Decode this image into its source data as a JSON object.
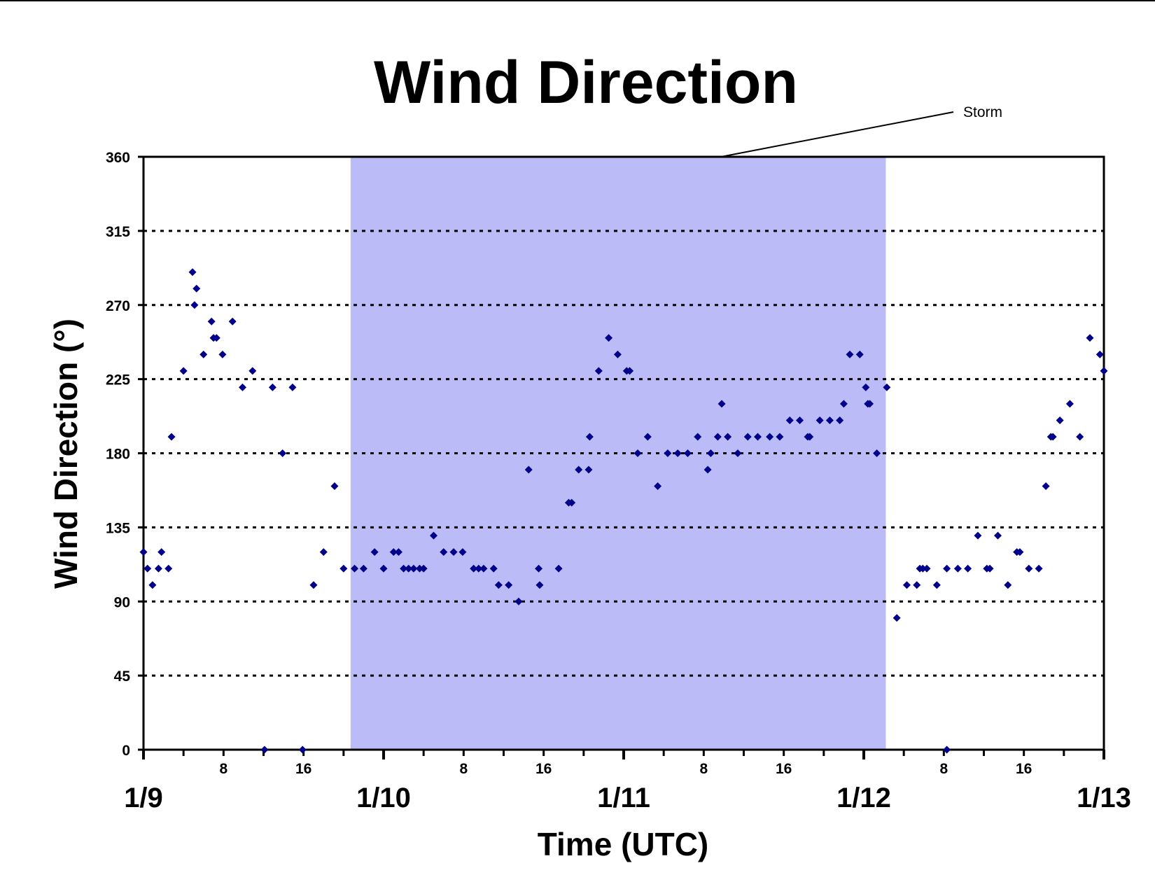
{
  "chart_data": {
    "type": "scatter",
    "title": "Wind Direction",
    "xlabel": "Time (UTC)",
    "ylabel": "Wind Direction (°)",
    "ylim": [
      0,
      360
    ],
    "yticks": [
      0,
      45,
      90,
      135,
      180,
      225,
      270,
      315,
      360
    ],
    "xlim": [
      0,
      96
    ],
    "date_ticks": [
      {
        "label": "1/9",
        "hour": 0
      },
      {
        "label": "1/10",
        "hour": 24
      },
      {
        "label": "1/11",
        "hour": 48
      },
      {
        "label": "1/12",
        "hour": 72
      },
      {
        "label": "1/13",
        "hour": 96
      }
    ],
    "hour_labels": [
      "8",
      "16"
    ],
    "grid": "horizontal dotted",
    "marker_color": "#00008b",
    "shaded_region": {
      "label": "Storm",
      "start_hour": 20.7,
      "end_hour": 74.2,
      "color": "#bbbbf8"
    },
    "annotation": "Storm",
    "x_units": "hours since 1/9 00 UTC",
    "points": [
      [
        0.0,
        120
      ],
      [
        0.4,
        110
      ],
      [
        0.9,
        100
      ],
      [
        1.5,
        110
      ],
      [
        1.8,
        120
      ],
      [
        2.5,
        110
      ],
      [
        2.8,
        190
      ],
      [
        4.0,
        230
      ],
      [
        4.9,
        290
      ],
      [
        5.1,
        270
      ],
      [
        5.3,
        280
      ],
      [
        6.0,
        240
      ],
      [
        6.8,
        260
      ],
      [
        7.0,
        250
      ],
      [
        7.3,
        250
      ],
      [
        7.9,
        240
      ],
      [
        8.9,
        260
      ],
      [
        9.9,
        220
      ],
      [
        10.9,
        230
      ],
      [
        12.1,
        0
      ],
      [
        12.9,
        220
      ],
      [
        13.9,
        180
      ],
      [
        14.9,
        220
      ],
      [
        15.9,
        0
      ],
      [
        17.0,
        100
      ],
      [
        18.0,
        120
      ],
      [
        19.1,
        160
      ],
      [
        20.0,
        110
      ],
      [
        21.1,
        110
      ],
      [
        22.0,
        110
      ],
      [
        23.1,
        120
      ],
      [
        24.0,
        110
      ],
      [
        25.0,
        120
      ],
      [
        25.5,
        120
      ],
      [
        26.0,
        110
      ],
      [
        26.5,
        110
      ],
      [
        27.0,
        110
      ],
      [
        27.6,
        110
      ],
      [
        28.0,
        110
      ],
      [
        29.0,
        130
      ],
      [
        30.0,
        120
      ],
      [
        31.0,
        120
      ],
      [
        31.9,
        120
      ],
      [
        33.0,
        110
      ],
      [
        33.5,
        110
      ],
      [
        34.0,
        110
      ],
      [
        35.0,
        110
      ],
      [
        35.5,
        100
      ],
      [
        36.5,
        100
      ],
      [
        37.5,
        90
      ],
      [
        38.5,
        170
      ],
      [
        39.5,
        110
      ],
      [
        39.6,
        100
      ],
      [
        41.5,
        110
      ],
      [
        42.5,
        150
      ],
      [
        42.8,
        150
      ],
      [
        43.5,
        170
      ],
      [
        44.5,
        170
      ],
      [
        44.6,
        190
      ],
      [
        45.5,
        230
      ],
      [
        46.5,
        250
      ],
      [
        47.4,
        240
      ],
      [
        48.3,
        230
      ],
      [
        48.6,
        230
      ],
      [
        49.4,
        180
      ],
      [
        50.4,
        190
      ],
      [
        51.4,
        160
      ],
      [
        52.4,
        180
      ],
      [
        53.4,
        180
      ],
      [
        54.4,
        180
      ],
      [
        55.4,
        190
      ],
      [
        56.4,
        170
      ],
      [
        56.7,
        180
      ],
      [
        57.4,
        190
      ],
      [
        57.8,
        210
      ],
      [
        58.4,
        190
      ],
      [
        59.4,
        180
      ],
      [
        60.4,
        190
      ],
      [
        61.4,
        190
      ],
      [
        62.6,
        190
      ],
      [
        63.6,
        190
      ],
      [
        64.6,
        200
      ],
      [
        65.6,
        200
      ],
      [
        66.4,
        190
      ],
      [
        66.6,
        190
      ],
      [
        67.6,
        200
      ],
      [
        68.6,
        200
      ],
      [
        69.6,
        200
      ],
      [
        70.0,
        210
      ],
      [
        70.6,
        240
      ],
      [
        71.6,
        240
      ],
      [
        72.2,
        220
      ],
      [
        72.4,
        210
      ],
      [
        72.6,
        210
      ],
      [
        73.3,
        180
      ],
      [
        74.3,
        220
      ],
      [
        75.3,
        80
      ],
      [
        76.3,
        100
      ],
      [
        77.3,
        100
      ],
      [
        77.6,
        110
      ],
      [
        77.9,
        110
      ],
      [
        78.3,
        110
      ],
      [
        79.3,
        100
      ],
      [
        80.3,
        110
      ],
      [
        80.3,
        0
      ],
      [
        81.4,
        110
      ],
      [
        82.4,
        110
      ],
      [
        83.4,
        130
      ],
      [
        84.3,
        110
      ],
      [
        84.6,
        110
      ],
      [
        85.4,
        130
      ],
      [
        86.4,
        100
      ],
      [
        87.3,
        120
      ],
      [
        87.6,
        120
      ],
      [
        88.5,
        110
      ],
      [
        89.5,
        110
      ],
      [
        90.2,
        160
      ],
      [
        90.7,
        190
      ],
      [
        90.9,
        190
      ],
      [
        91.6,
        200
      ],
      [
        92.6,
        210
      ],
      [
        93.6,
        190
      ],
      [
        94.6,
        250
      ],
      [
        95.6,
        240
      ],
      [
        96.0,
        230
      ]
    ]
  }
}
